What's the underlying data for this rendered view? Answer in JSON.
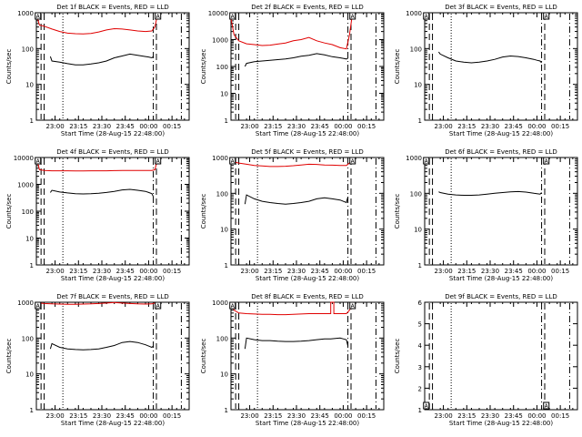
{
  "colors": {
    "events": "#000000",
    "lld": "#e00000"
  },
  "common": {
    "xlabel": "Start Time (28-Aug-15 22:48:00)",
    "ylabel": "Counts/sec",
    "x_ticks": [
      "23:00",
      "23:15",
      "23:30",
      "23:45",
      "00:00",
      "00:15"
    ],
    "x_tick_minutes": [
      12,
      27,
      42,
      57,
      72,
      87
    ],
    "x_range_minutes": [
      0,
      98
    ],
    "vlines": [
      {
        "style": "dash",
        "minute": 3
      },
      {
        "style": "dash",
        "minute": 5
      },
      {
        "style": "dot",
        "minute": 17
      },
      {
        "style": "dashdot",
        "minute": 75
      },
      {
        "style": "dash",
        "minute": 77
      },
      {
        "style": "dashdot",
        "minute": 93
      }
    ]
  },
  "chart_data": [
    {
      "type": "line",
      "title": "Det 1f BLACK = Events, RED = LLD",
      "y_ticks": [
        "1",
        "10",
        "100",
        "1000"
      ],
      "ylim": [
        1,
        1000
      ],
      "markers": [
        {
          "label": "A",
          "minute": 1,
          "value": 1000
        },
        {
          "label": "A",
          "minute": 78,
          "value": 1000
        }
      ],
      "series": [
        {
          "name": "Events",
          "color": "black",
          "x": [
            9,
            10,
            15,
            20,
            25,
            30,
            35,
            40,
            45,
            50,
            55,
            60,
            65,
            70,
            72,
            74,
            75
          ],
          "y": [
            60,
            45,
            42,
            38,
            35,
            35,
            37,
            40,
            45,
            55,
            62,
            70,
            65,
            60,
            58,
            55,
            60
          ]
        },
        {
          "name": "LLD",
          "color": "red",
          "x": [
            0,
            2,
            5,
            10,
            15,
            20,
            25,
            30,
            35,
            40,
            45,
            50,
            55,
            60,
            65,
            70,
            74,
            76,
            78
          ],
          "y": [
            900,
            450,
            420,
            350,
            300,
            270,
            260,
            255,
            265,
            290,
            330,
            360,
            350,
            330,
            310,
            300,
            310,
            400,
            1000
          ]
        }
      ]
    },
    {
      "type": "line",
      "title": "Det 2f BLACK = Events, RED = LLD",
      "y_ticks": [
        "1",
        "10",
        "100",
        "1000",
        "10000"
      ],
      "ylim": [
        1,
        10000
      ],
      "markers": [
        {
          "label": "A",
          "minute": 1,
          "value": 10000
        },
        {
          "label": "A",
          "minute": 78,
          "value": 10000
        }
      ],
      "series": [
        {
          "name": "Events",
          "color": "black",
          "x": [
            9,
            10,
            15,
            20,
            25,
            30,
            35,
            40,
            45,
            50,
            55,
            60,
            65,
            70,
            72,
            74,
            75
          ],
          "y": [
            100,
            130,
            150,
            160,
            170,
            180,
            190,
            210,
            240,
            260,
            300,
            270,
            230,
            210,
            200,
            190,
            200
          ]
        },
        {
          "name": "LLD",
          "color": "red",
          "x": [
            0,
            2,
            5,
            10,
            15,
            20,
            25,
            30,
            35,
            40,
            45,
            50,
            55,
            60,
            65,
            70,
            74,
            76,
            78
          ],
          "y": [
            6000,
            1500,
            900,
            700,
            650,
            600,
            620,
            680,
            750,
            900,
            1000,
            1200,
            900,
            750,
            650,
            500,
            450,
            1500,
            10000
          ]
        }
      ]
    },
    {
      "type": "line",
      "title": "Det 3f BLACK = Events, RED = LLD",
      "y_ticks": [
        "1",
        "10",
        "100",
        "1000"
      ],
      "ylim": [
        1,
        1000
      ],
      "markers": [
        {
          "label": "A",
          "minute": 1,
          "value": 1000
        },
        {
          "label": "A",
          "minute": 78,
          "value": 1000
        }
      ],
      "series": [
        {
          "name": "Events",
          "color": "black",
          "x": [
            9,
            10,
            15,
            20,
            25,
            30,
            35,
            40,
            45,
            50,
            55,
            60,
            65,
            70,
            72,
            74,
            75
          ],
          "y": [
            80,
            70,
            55,
            45,
            42,
            40,
            42,
            45,
            50,
            58,
            62,
            60,
            55,
            50,
            47,
            45,
            40
          ]
        }
      ]
    },
    {
      "type": "line",
      "title": "Det 4f BLACK = Events, RED = LLD",
      "y_ticks": [
        "1",
        "10",
        "100",
        "1000",
        "10000"
      ],
      "ylim": [
        1,
        10000
      ],
      "markers": [
        {
          "label": "A",
          "minute": 1,
          "value": 10000
        },
        {
          "label": "A",
          "minute": 78,
          "value": 10000
        }
      ],
      "series": [
        {
          "name": "Events",
          "color": "black",
          "x": [
            9,
            10,
            15,
            20,
            25,
            30,
            35,
            40,
            45,
            50,
            55,
            60,
            65,
            70,
            72,
            74,
            75
          ],
          "y": [
            500,
            600,
            520,
            480,
            450,
            440,
            450,
            470,
            500,
            550,
            620,
            650,
            600,
            550,
            500,
            450,
            350
          ]
        },
        {
          "name": "LLD",
          "color": "red",
          "x": [
            0,
            2,
            5,
            10,
            15,
            20,
            25,
            30,
            35,
            40,
            45,
            50,
            55,
            60,
            65,
            70,
            74,
            76,
            78
          ],
          "y": [
            10000,
            3500,
            3300,
            3200,
            3200,
            3200,
            3150,
            3150,
            3200,
            3200,
            3200,
            3250,
            3300,
            3300,
            3300,
            3300,
            3300,
            3500,
            10000
          ]
        }
      ]
    },
    {
      "type": "line",
      "title": "Det 5f BLACK = Events, RED = LLD",
      "y_ticks": [
        "1",
        "10",
        "100",
        "1000"
      ],
      "ylim": [
        1,
        1000
      ],
      "markers": [
        {
          "label": "A",
          "minute": 1,
          "value": 1000
        },
        {
          "label": "A",
          "minute": 78,
          "value": 1000
        }
      ],
      "series": [
        {
          "name": "Events",
          "color": "black",
          "x": [
            9,
            10,
            15,
            20,
            25,
            30,
            35,
            40,
            45,
            50,
            55,
            60,
            65,
            70,
            72,
            74,
            75
          ],
          "y": [
            50,
            90,
            70,
            60,
            55,
            52,
            50,
            52,
            55,
            60,
            70,
            75,
            70,
            65,
            60,
            55,
            80
          ]
        },
        {
          "name": "LLD",
          "color": "red",
          "x": [
            0,
            2,
            5,
            10,
            15,
            20,
            25,
            30,
            35,
            40,
            45,
            50,
            55,
            60,
            65,
            70,
            74,
            76,
            78
          ],
          "y": [
            900,
            750,
            700,
            650,
            600,
            580,
            560,
            560,
            570,
            590,
            620,
            650,
            640,
            620,
            610,
            600,
            600,
            700,
            1000
          ]
        }
      ]
    },
    {
      "type": "line",
      "title": "Det 6f BLACK = Events, RED = LLD",
      "y_ticks": [
        "1",
        "10",
        "100",
        "1000"
      ],
      "ylim": [
        1,
        1000
      ],
      "markers": [
        {
          "label": "A",
          "minute": 1,
          "value": 1000
        },
        {
          "label": "A",
          "minute": 78,
          "value": 1000
        }
      ],
      "series": [
        {
          "name": "Events",
          "color": "black",
          "x": [
            9,
            10,
            15,
            20,
            25,
            30,
            35,
            40,
            45,
            50,
            55,
            60,
            65,
            70,
            72,
            74,
            75
          ],
          "y": [
            110,
            105,
            95,
            90,
            88,
            88,
            90,
            95,
            100,
            105,
            110,
            112,
            108,
            100,
            98,
            95,
            105
          ]
        }
      ]
    },
    {
      "type": "line",
      "title": "Det 7f BLACK = Events, RED = LLD",
      "y_ticks": [
        "1",
        "10",
        "100",
        "1000"
      ],
      "ylim": [
        1,
        1000
      ],
      "markers": [
        {
          "label": "A",
          "minute": 1,
          "value": 1000
        },
        {
          "label": "A",
          "minute": 78,
          "value": 1000
        }
      ],
      "series": [
        {
          "name": "Events",
          "color": "black",
          "x": [
            9,
            10,
            15,
            20,
            25,
            30,
            35,
            40,
            45,
            50,
            55,
            60,
            65,
            70,
            72,
            74,
            75
          ],
          "y": [
            50,
            70,
            55,
            50,
            48,
            47,
            48,
            50,
            55,
            62,
            75,
            80,
            75,
            65,
            60,
            55,
            60
          ]
        },
        {
          "name": "LLD",
          "color": "red",
          "x": [
            0,
            2,
            5,
            10,
            15,
            20,
            25,
            30,
            35,
            40,
            45,
            50,
            55,
            60,
            65,
            70,
            74,
            76,
            78
          ],
          "y": [
            1000,
            950,
            920,
            900,
            890,
            880,
            880,
            890,
            900,
            920,
            950,
            980,
            950,
            920,
            900,
            890,
            900,
            950,
            1000
          ]
        }
      ]
    },
    {
      "type": "line",
      "title": "Det 8f BLACK = Events, RED = LLD",
      "y_ticks": [
        "1",
        "10",
        "100",
        "1000"
      ],
      "ylim": [
        1,
        1000
      ],
      "markers": [
        {
          "label": "A",
          "minute": 1,
          "value": 1000
        },
        {
          "label": "A",
          "minute": 78,
          "value": 1000
        }
      ],
      "series": [
        {
          "name": "Events",
          "color": "black",
          "x": [
            9,
            10,
            15,
            20,
            25,
            30,
            35,
            40,
            45,
            50,
            55,
            60,
            64,
            70,
            72,
            74,
            75
          ],
          "y": [
            50,
            100,
            90,
            85,
            85,
            82,
            80,
            80,
            82,
            85,
            90,
            95,
            95,
            100,
            95,
            90,
            60
          ]
        },
        {
          "name": "LLD",
          "color": "red",
          "x": [
            0,
            2,
            5,
            10,
            15,
            20,
            25,
            30,
            35,
            40,
            45,
            50,
            55,
            60,
            64,
            64,
            66,
            66,
            70,
            74,
            76,
            78
          ],
          "y": [
            1000,
            600,
            500,
            480,
            470,
            460,
            460,
            450,
            450,
            460,
            470,
            480,
            480,
            480,
            480,
            1000,
            1000,
            480,
            480,
            480,
            600,
            1000
          ]
        }
      ]
    },
    {
      "type": "line",
      "title": "Det 9f BLACK = Events, RED = LLD",
      "y_ticks": [
        "1",
        "2",
        "3",
        "4",
        "5",
        "6"
      ],
      "ylim": [
        1,
        6
      ],
      "markers": [
        {
          "label": "A",
          "minute": 1,
          "value": 1
        },
        {
          "label": "A",
          "minute": 78,
          "value": 1
        }
      ],
      "series": []
    }
  ]
}
